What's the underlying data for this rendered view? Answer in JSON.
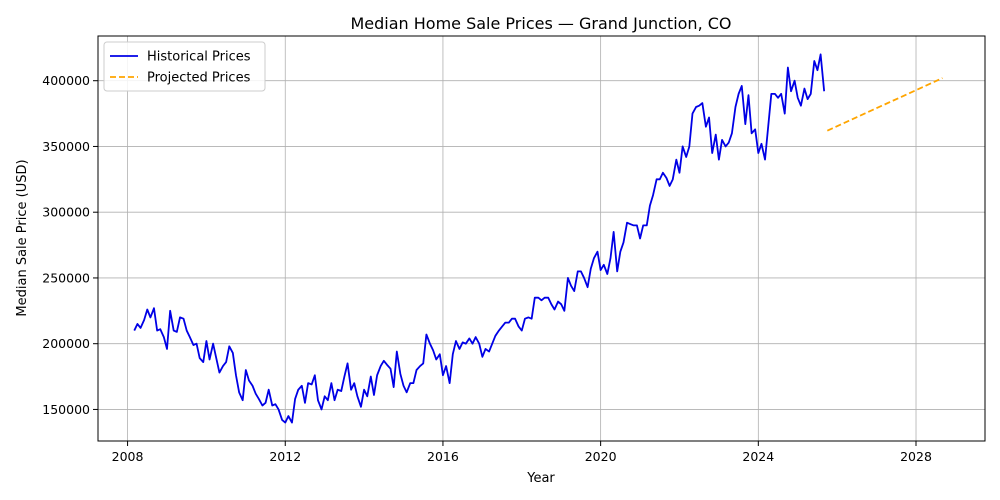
{
  "chart_data": {
    "type": "line",
    "title": "Median Home Sale Prices — Grand Junction, CO",
    "xlabel": "Year",
    "ylabel": "Median Sale Price (USD)",
    "xlim": [
      2007.25,
      2029.75
    ],
    "ylim": [
      126000,
      434000
    ],
    "xticks": [
      2008,
      2012,
      2016,
      2020,
      2024,
      2028
    ],
    "yticks": [
      150000,
      200000,
      250000,
      300000,
      350000,
      400000
    ],
    "grid": true,
    "legend_position": "top-left",
    "series": [
      {
        "name": "Historical Prices",
        "color": "#0000e6",
        "style": "solid",
        "x": [
          2008.17,
          2008.25,
          2008.33,
          2008.42,
          2008.5,
          2008.58,
          2008.67,
          2008.75,
          2008.83,
          2008.92,
          2009.0,
          2009.08,
          2009.17,
          2009.25,
          2009.33,
          2009.42,
          2009.5,
          2009.58,
          2009.67,
          2009.75,
          2009.83,
          2009.92,
          2010.0,
          2010.08,
          2010.17,
          2010.25,
          2010.33,
          2010.42,
          2010.5,
          2010.58,
          2010.67,
          2010.75,
          2010.83,
          2010.92,
          2011.0,
          2011.08,
          2011.17,
          2011.25,
          2011.33,
          2011.42,
          2011.5,
          2011.58,
          2011.67,
          2011.75,
          2011.83,
          2011.92,
          2012.0,
          2012.08,
          2012.17,
          2012.25,
          2012.33,
          2012.42,
          2012.5,
          2012.58,
          2012.67,
          2012.75,
          2012.83,
          2012.92,
          2013.0,
          2013.08,
          2013.17,
          2013.25,
          2013.33,
          2013.42,
          2013.5,
          2013.58,
          2013.67,
          2013.75,
          2013.83,
          2013.92,
          2014.0,
          2014.08,
          2014.17,
          2014.25,
          2014.33,
          2014.42,
          2014.5,
          2014.58,
          2014.67,
          2014.75,
          2014.83,
          2014.92,
          2015.0,
          2015.08,
          2015.17,
          2015.25,
          2015.33,
          2015.42,
          2015.5,
          2015.58,
          2015.67,
          2015.75,
          2015.83,
          2015.92,
          2016.0,
          2016.08,
          2016.17,
          2016.25,
          2016.33,
          2016.42,
          2016.5,
          2016.58,
          2016.67,
          2016.75,
          2016.83,
          2016.92,
          2017.0,
          2017.08,
          2017.17,
          2017.25,
          2017.33,
          2017.42,
          2017.5,
          2017.58,
          2017.67,
          2017.75,
          2017.83,
          2017.92,
          2018.0,
          2018.08,
          2018.17,
          2018.25,
          2018.33,
          2018.42,
          2018.5,
          2018.58,
          2018.67,
          2018.75,
          2018.83,
          2018.92,
          2019.0,
          2019.08,
          2019.17,
          2019.25,
          2019.33,
          2019.42,
          2019.5,
          2019.58,
          2019.67,
          2019.75,
          2019.83,
          2019.92,
          2020.0,
          2020.08,
          2020.17,
          2020.25,
          2020.33,
          2020.42,
          2020.5,
          2020.58,
          2020.67,
          2020.75,
          2020.83,
          2020.92,
          2021.0,
          2021.08,
          2021.17,
          2021.25,
          2021.33,
          2021.42,
          2021.5,
          2021.58,
          2021.67,
          2021.75,
          2021.83,
          2021.92,
          2022.0,
          2022.08,
          2022.17,
          2022.25,
          2022.33,
          2022.42,
          2022.5,
          2022.58,
          2022.67,
          2022.75,
          2022.83,
          2022.92,
          2023.0,
          2023.08,
          2023.17,
          2023.25,
          2023.33,
          2023.42,
          2023.5,
          2023.58,
          2023.67,
          2023.75,
          2023.83,
          2023.92,
          2024.0,
          2024.08,
          2024.17,
          2024.25,
          2024.33,
          2024.42,
          2024.5,
          2024.58,
          2024.67,
          2024.75,
          2024.83,
          2024.92,
          2025.0,
          2025.08,
          2025.17,
          2025.25,
          2025.33,
          2025.42,
          2025.5,
          2025.58,
          2025.67
        ],
        "values": [
          210000,
          215000,
          212000,
          218000,
          226000,
          220000,
          227000,
          210000,
          211000,
          205000,
          196000,
          225000,
          210000,
          209000,
          220000,
          219000,
          210000,
          205000,
          199000,
          200000,
          189000,
          186000,
          202000,
          188000,
          200000,
          189000,
          178000,
          183000,
          186000,
          198000,
          193000,
          176000,
          163000,
          157000,
          180000,
          172000,
          168000,
          162000,
          158000,
          153000,
          155000,
          165000,
          153000,
          154000,
          150000,
          142000,
          140000,
          145000,
          140000,
          158000,
          165000,
          168000,
          155000,
          170000,
          169000,
          176000,
          157000,
          150000,
          160000,
          157000,
          170000,
          157000,
          165000,
          164000,
          175000,
          185000,
          165000,
          170000,
          160000,
          152000,
          165000,
          160000,
          175000,
          161000,
          176000,
          183000,
          187000,
          184000,
          181000,
          167000,
          194000,
          177000,
          168000,
          163000,
          170000,
          170000,
          180000,
          183000,
          185000,
          207000,
          200000,
          195000,
          188000,
          192000,
          176000,
          183000,
          170000,
          192000,
          202000,
          196000,
          201000,
          200000,
          204000,
          200000,
          205000,
          200000,
          190000,
          196000,
          194000,
          200000,
          206000,
          210000,
          213000,
          216000,
          216000,
          219000,
          219000,
          213000,
          210000,
          219000,
          220000,
          219000,
          235000,
          235000,
          233000,
          235000,
          235000,
          230000,
          226000,
          232000,
          230000,
          225000,
          250000,
          244000,
          240000,
          255000,
          255000,
          250000,
          243000,
          257000,
          265000,
          270000,
          256000,
          260000,
          253000,
          265000,
          285000,
          255000,
          270000,
          277000,
          292000,
          291000,
          290000,
          290000,
          280000,
          290000,
          290000,
          305000,
          313000,
          325000,
          325000,
          330000,
          326000,
          320000,
          325000,
          340000,
          330000,
          350000,
          342000,
          350000,
          375000,
          380000,
          381000,
          383000,
          365000,
          372000,
          345000,
          359000,
          340000,
          355000,
          350000,
          353000,
          360000,
          380000,
          390000,
          396000,
          367000,
          389000,
          360000,
          363000,
          345000,
          352000,
          340000,
          365000,
          390000,
          390000,
          387000,
          390000,
          375000,
          410000,
          392000,
          400000,
          387000,
          381000,
          394000,
          386000,
          390000,
          415000,
          408000,
          420000,
          392000
        ]
      },
      {
        "name": "Projected Prices",
        "color": "#ffa500",
        "style": "dashed",
        "x": [
          2025.75,
          2028.67
        ],
        "values": [
          362000,
          402000
        ]
      }
    ]
  }
}
